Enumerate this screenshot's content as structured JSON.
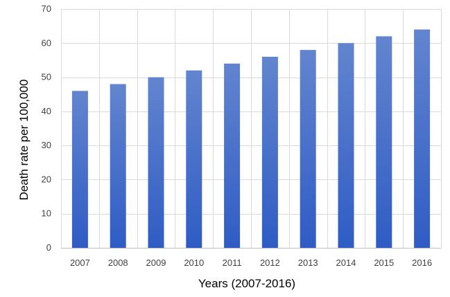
{
  "chart_data": {
    "type": "bar",
    "title": "",
    "xlabel": "Years (2007-2016)",
    "ylabel": "Death rate per 100,000",
    "categories": [
      "2007",
      "2008",
      "2009",
      "2010",
      "2011",
      "2012",
      "2013",
      "2014",
      "2015",
      "2016"
    ],
    "values": [
      46,
      48,
      50,
      52,
      54,
      56,
      58,
      60,
      62,
      64
    ],
    "ylim": [
      0,
      70
    ],
    "yticks": [
      "0",
      "10",
      "20",
      "30",
      "40",
      "50",
      "60",
      "70"
    ],
    "grid": true,
    "legend": "none",
    "colors": {
      "bar_top": "#6385cf",
      "bar_bottom": "#2f5cc4",
      "grid": "#d9d9d9"
    }
  }
}
